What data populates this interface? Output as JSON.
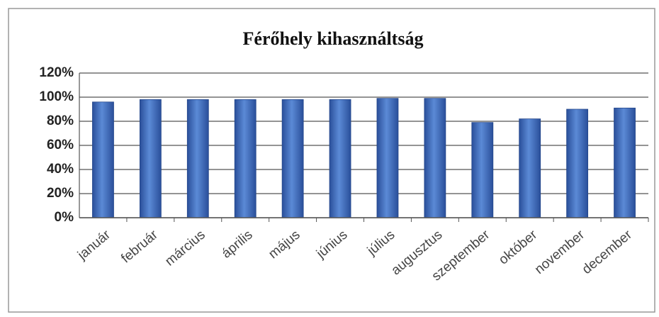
{
  "chart_data": {
    "type": "bar",
    "title": "Férőhely kihasználtság",
    "categories": [
      "január",
      "február",
      "március",
      "április",
      "május",
      "június",
      "július",
      "augusztus",
      "szeptember",
      "október",
      "november",
      "december"
    ],
    "values": [
      96,
      98,
      98,
      98,
      98,
      98,
      99,
      99,
      79,
      82,
      90,
      91
    ],
    "color": "#3f6fc0",
    "ylim": [
      0,
      120
    ],
    "yticks": [
      {
        "value": 0,
        "label": "0%"
      },
      {
        "value": 20,
        "label": "20%"
      },
      {
        "value": 40,
        "label": "40%"
      },
      {
        "value": 60,
        "label": "60%"
      },
      {
        "value": 80,
        "label": "80%"
      },
      {
        "value": 100,
        "label": "100%"
      },
      {
        "value": 120,
        "label": "120%"
      }
    ],
    "grid": true
  }
}
